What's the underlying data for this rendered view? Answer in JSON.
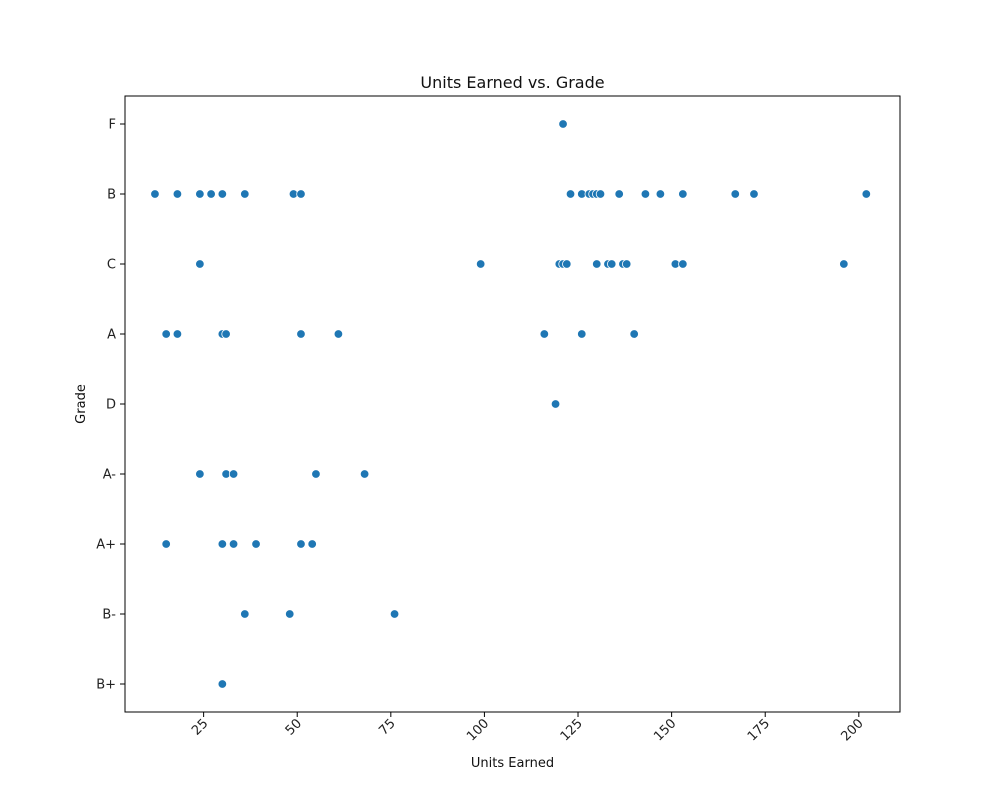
{
  "chart_data": {
    "type": "scatter",
    "title": "Units Earned vs. Grade",
    "xlabel": "Units Earned",
    "ylabel": "Grade",
    "xlim": [
      4,
      211
    ],
    "x_ticks": [
      25,
      50,
      75,
      100,
      125,
      150,
      175,
      200
    ],
    "y_categories": [
      "F",
      "B",
      "C",
      "A",
      "D",
      "A-",
      "A+",
      "B-",
      "B+"
    ],
    "grid": false,
    "marker_color": "#1f77b4",
    "marker_edge_color": "#ffffff",
    "points": [
      {
        "x": 121,
        "y": "F"
      },
      {
        "x": 12,
        "y": "B"
      },
      {
        "x": 18,
        "y": "B"
      },
      {
        "x": 24,
        "y": "B"
      },
      {
        "x": 27,
        "y": "B"
      },
      {
        "x": 30,
        "y": "B"
      },
      {
        "x": 36,
        "y": "B"
      },
      {
        "x": 49,
        "y": "B"
      },
      {
        "x": 51,
        "y": "B"
      },
      {
        "x": 123,
        "y": "B"
      },
      {
        "x": 126,
        "y": "B"
      },
      {
        "x": 128,
        "y": "B"
      },
      {
        "x": 129,
        "y": "B"
      },
      {
        "x": 130,
        "y": "B"
      },
      {
        "x": 131,
        "y": "B"
      },
      {
        "x": 136,
        "y": "B"
      },
      {
        "x": 143,
        "y": "B"
      },
      {
        "x": 147,
        "y": "B"
      },
      {
        "x": 153,
        "y": "B"
      },
      {
        "x": 167,
        "y": "B"
      },
      {
        "x": 172,
        "y": "B"
      },
      {
        "x": 202,
        "y": "B"
      },
      {
        "x": 24,
        "y": "C"
      },
      {
        "x": 99,
        "y": "C"
      },
      {
        "x": 120,
        "y": "C"
      },
      {
        "x": 121,
        "y": "C"
      },
      {
        "x": 122,
        "y": "C"
      },
      {
        "x": 130,
        "y": "C"
      },
      {
        "x": 133,
        "y": "C"
      },
      {
        "x": 134,
        "y": "C"
      },
      {
        "x": 137,
        "y": "C"
      },
      {
        "x": 138,
        "y": "C"
      },
      {
        "x": 151,
        "y": "C"
      },
      {
        "x": 153,
        "y": "C"
      },
      {
        "x": 196,
        "y": "C"
      },
      {
        "x": 15,
        "y": "A"
      },
      {
        "x": 18,
        "y": "A"
      },
      {
        "x": 30,
        "y": "A"
      },
      {
        "x": 31,
        "y": "A"
      },
      {
        "x": 51,
        "y": "A"
      },
      {
        "x": 61,
        "y": "A"
      },
      {
        "x": 116,
        "y": "A"
      },
      {
        "x": 126,
        "y": "A"
      },
      {
        "x": 140,
        "y": "A"
      },
      {
        "x": 119,
        "y": "D"
      },
      {
        "x": 24,
        "y": "A-"
      },
      {
        "x": 31,
        "y": "A-"
      },
      {
        "x": 33,
        "y": "A-"
      },
      {
        "x": 55,
        "y": "A-"
      },
      {
        "x": 68,
        "y": "A-"
      },
      {
        "x": 15,
        "y": "A+"
      },
      {
        "x": 30,
        "y": "A+"
      },
      {
        "x": 33,
        "y": "A+"
      },
      {
        "x": 39,
        "y": "A+"
      },
      {
        "x": 51,
        "y": "A+"
      },
      {
        "x": 54,
        "y": "A+"
      },
      {
        "x": 36,
        "y": "B-"
      },
      {
        "x": 48,
        "y": "B-"
      },
      {
        "x": 76,
        "y": "B-"
      },
      {
        "x": 30,
        "y": "B+"
      }
    ]
  }
}
